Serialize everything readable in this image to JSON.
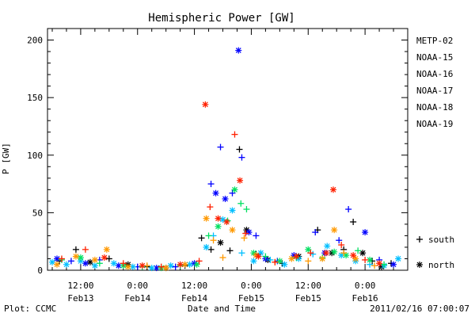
{
  "chart_data": {
    "type": "scatter",
    "title": "Hemispheric Power [GW]",
    "xlabel": "Date and Time",
    "ylabel": "P [GW]",
    "ylim": [
      0,
      210
    ],
    "y_ticks": [
      "0",
      "50",
      "100",
      "150",
      "200"
    ],
    "x_ticks": [
      {
        "t": "12:00",
        "d": "Feb13",
        "hour": 12
      },
      {
        "t": "0:00",
        "d": "Feb14",
        "hour": 24
      },
      {
        "t": "12:00",
        "d": "Feb14",
        "hour": 36
      },
      {
        "t": "0:00",
        "d": "Feb15",
        "hour": 48
      },
      {
        "t": "12:00",
        "d": "Feb15",
        "hour": 60
      },
      {
        "t": "0:00",
        "d": "Feb16",
        "hour": 72
      }
    ],
    "xlim_hours": [
      5,
      81
    ],
    "grid": false,
    "legend_position": "right",
    "footer_left": "Plot: CCMC",
    "footer_right": "2011/02/16 07:00:07",
    "marker_legend": [
      {
        "symbol": "+",
        "label": "south"
      },
      {
        "symbol": "*",
        "label": "north"
      }
    ],
    "series": [
      {
        "name": "METP-02",
        "color": "#000000",
        "points": [
          [
            7.5,
            8,
            "s"
          ],
          [
            11,
            18,
            "s"
          ],
          [
            14,
            7,
            "n"
          ],
          [
            18,
            10,
            "s"
          ],
          [
            22,
            5,
            "n"
          ],
          [
            26,
            3,
            "s"
          ],
          [
            30,
            2,
            "n"
          ],
          [
            34,
            4,
            "s"
          ],
          [
            37.5,
            28,
            "s"
          ],
          [
            39.5,
            18,
            "s"
          ],
          [
            41.5,
            24,
            "n"
          ],
          [
            43.5,
            17,
            "s"
          ],
          [
            45.5,
            105,
            "s"
          ],
          [
            47,
            35,
            "n"
          ],
          [
            49,
            14,
            "s"
          ],
          [
            51.5,
            9,
            "n"
          ],
          [
            54.5,
            6,
            "s"
          ],
          [
            58,
            12,
            "n"
          ],
          [
            62,
            35,
            "s"
          ],
          [
            65,
            15,
            "n"
          ],
          [
            67.5,
            18,
            "s"
          ],
          [
            69.5,
            42,
            "s"
          ],
          [
            71.5,
            15,
            "n"
          ],
          [
            73.5,
            8,
            "s"
          ],
          [
            75.5,
            3,
            "n"
          ],
          [
            77.5,
            6,
            "s"
          ]
        ]
      },
      {
        "name": "NOAA-15",
        "color": "#0000ff",
        "points": [
          [
            7,
            10,
            "n"
          ],
          [
            10,
            8,
            "s"
          ],
          [
            13,
            6,
            "n"
          ],
          [
            16,
            9,
            "s"
          ],
          [
            20,
            4,
            "n"
          ],
          [
            24,
            3,
            "s"
          ],
          [
            28,
            2,
            "n"
          ],
          [
            32,
            3,
            "s"
          ],
          [
            36,
            6,
            "n"
          ],
          [
            39.5,
            75,
            "s"
          ],
          [
            40.5,
            67,
            "n"
          ],
          [
            41.5,
            107,
            "s"
          ],
          [
            42.5,
            62,
            "n"
          ],
          [
            44,
            67,
            "s"
          ],
          [
            45.3,
            191,
            "n"
          ],
          [
            46,
            98,
            "s"
          ],
          [
            47.5,
            33,
            "n"
          ],
          [
            49,
            30,
            "s"
          ],
          [
            51,
            10,
            "n"
          ],
          [
            53.5,
            8,
            "s"
          ],
          [
            57,
            13,
            "n"
          ],
          [
            61.5,
            33,
            "s"
          ],
          [
            63.5,
            15,
            "n"
          ],
          [
            66.5,
            26,
            "s"
          ],
          [
            68.5,
            53,
            "s"
          ],
          [
            72,
            33,
            "n"
          ],
          [
            75,
            9,
            "s"
          ],
          [
            78,
            5,
            "n"
          ]
        ]
      },
      {
        "name": "NOAA-16",
        "color": "#00bfff",
        "points": [
          [
            6,
            7,
            "n"
          ],
          [
            9,
            5,
            "n"
          ],
          [
            12,
            8,
            "n"
          ],
          [
            15,
            4,
            "n"
          ],
          [
            19,
            6,
            "n"
          ],
          [
            23,
            3,
            "n"
          ],
          [
            27,
            2,
            "n"
          ],
          [
            31,
            4,
            "n"
          ],
          [
            35,
            5,
            "n"
          ],
          [
            38.5,
            20,
            "n"
          ],
          [
            40,
            30,
            "s"
          ],
          [
            42,
            44,
            "n"
          ],
          [
            44,
            52,
            "n"
          ],
          [
            46,
            15,
            "s"
          ],
          [
            48.5,
            8,
            "n"
          ],
          [
            50,
            15,
            "n"
          ],
          [
            52,
            9,
            "s"
          ],
          [
            55,
            5,
            "n"
          ],
          [
            58,
            10,
            "n"
          ],
          [
            61,
            14,
            "s"
          ],
          [
            64,
            21,
            "n"
          ],
          [
            67,
            13,
            "n"
          ],
          [
            70,
            8,
            "n"
          ],
          [
            73,
            5,
            "s"
          ],
          [
            76,
            4,
            "n"
          ],
          [
            79,
            10,
            "n"
          ]
        ]
      },
      {
        "name": "NOAA-17",
        "color": "#00e060",
        "points": [
          [
            8,
            9,
            "s"
          ],
          [
            12,
            11,
            "n"
          ],
          [
            16,
            6,
            "s"
          ],
          [
            21,
            4,
            "n"
          ],
          [
            25,
            3,
            "s"
          ],
          [
            29,
            2,
            "n"
          ],
          [
            33,
            4,
            "s"
          ],
          [
            36.5,
            5,
            "n"
          ],
          [
            39,
            30,
            "s"
          ],
          [
            41,
            38,
            "n"
          ],
          [
            43,
            43,
            "s"
          ],
          [
            44.5,
            70,
            "n"
          ],
          [
            45.8,
            58,
            "s"
          ],
          [
            47,
            53,
            "s"
          ],
          [
            48.5,
            15,
            "n"
          ],
          [
            51,
            12,
            "s"
          ],
          [
            54,
            8,
            "n"
          ],
          [
            57.5,
            11,
            "s"
          ],
          [
            60,
            18,
            "n"
          ],
          [
            63,
            11,
            "s"
          ],
          [
            65.5,
            16,
            "n"
          ],
          [
            68,
            13,
            "n"
          ],
          [
            70.5,
            17,
            "s"
          ],
          [
            73,
            9,
            "n"
          ],
          [
            76,
            5,
            "s"
          ]
        ]
      },
      {
        "name": "NOAA-18",
        "color": "#ff9900",
        "points": [
          [
            7,
            5,
            "n"
          ],
          [
            11,
            12,
            "n"
          ],
          [
            15,
            9,
            "n"
          ],
          [
            17.5,
            18,
            "n"
          ],
          [
            22,
            3,
            "n"
          ],
          [
            26,
            4,
            "s"
          ],
          [
            30,
            2,
            "n"
          ],
          [
            34,
            5,
            "n"
          ],
          [
            38.5,
            45,
            "n"
          ],
          [
            40,
            26,
            "s"
          ],
          [
            42,
            11,
            "s"
          ],
          [
            44,
            35,
            "n"
          ],
          [
            46.5,
            28,
            "s"
          ],
          [
            49,
            13,
            "n"
          ],
          [
            53,
            7,
            "s"
          ],
          [
            56.5,
            10,
            "n"
          ],
          [
            60,
            8,
            "s"
          ],
          [
            63,
            10,
            "n"
          ],
          [
            65.5,
            35,
            "n"
          ],
          [
            67.5,
            15,
            "s"
          ],
          [
            70,
            10,
            "n"
          ],
          [
            74,
            4,
            "s"
          ]
        ]
      },
      {
        "name": "NOAA-19",
        "color": "#ff2000",
        "points": [
          [
            8,
            10,
            "s"
          ],
          [
            13,
            18,
            "s"
          ],
          [
            17,
            11,
            "n"
          ],
          [
            21,
            6,
            "s"
          ],
          [
            25,
            4,
            "n"
          ],
          [
            29,
            3,
            "s"
          ],
          [
            33,
            5,
            "n"
          ],
          [
            37,
            8,
            "s"
          ],
          [
            38.3,
            144,
            "n"
          ],
          [
            39.3,
            55,
            "s"
          ],
          [
            41,
            45,
            "n"
          ],
          [
            42.8,
            42,
            "n"
          ],
          [
            44.5,
            118,
            "s"
          ],
          [
            45.6,
            78,
            "n"
          ],
          [
            46.8,
            32,
            "s"
          ],
          [
            49.5,
            12,
            "n"
          ],
          [
            53,
            7,
            "s"
          ],
          [
            57.5,
            12,
            "n"
          ],
          [
            60.5,
            15,
            "s"
          ],
          [
            63.8,
            15,
            "n"
          ],
          [
            65.3,
            70,
            "n"
          ],
          [
            67,
            22,
            "s"
          ],
          [
            69.5,
            13,
            "n"
          ],
          [
            72,
            9,
            "s"
          ],
          [
            75,
            6,
            "n"
          ]
        ]
      }
    ]
  }
}
